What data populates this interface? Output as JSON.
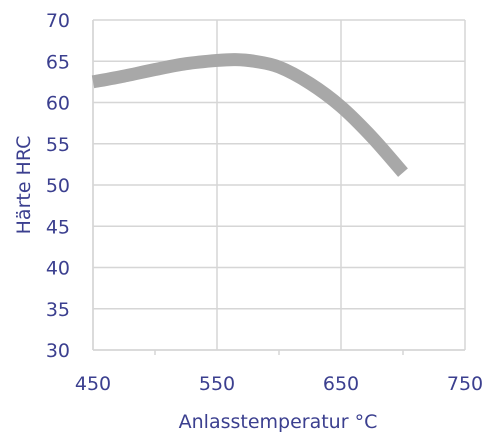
{
  "chart_data": {
    "type": "line",
    "title": "",
    "xlabel": "Anlasstemperatur °C",
    "ylabel": "Härte HRC",
    "xlim": [
      450,
      750
    ],
    "ylim": [
      30,
      70
    ],
    "x_ticks": [
      "450",
      "550",
      "650",
      "750"
    ],
    "y_ticks": [
      "30",
      "35",
      "40",
      "45",
      "50",
      "55",
      "60",
      "65",
      "70"
    ],
    "grid": true,
    "legend": "none",
    "series": [
      {
        "color": "#a8a8a8",
        "x": [
          450,
          475,
          500,
          525,
          550,
          565,
          580,
          600,
          625,
          650,
          675,
          700
        ],
        "y": [
          62.5,
          63.2,
          64.0,
          64.7,
          65.1,
          65.2,
          65.0,
          64.3,
          62.3,
          59.5,
          55.8,
          51.5
        ]
      }
    ]
  }
}
